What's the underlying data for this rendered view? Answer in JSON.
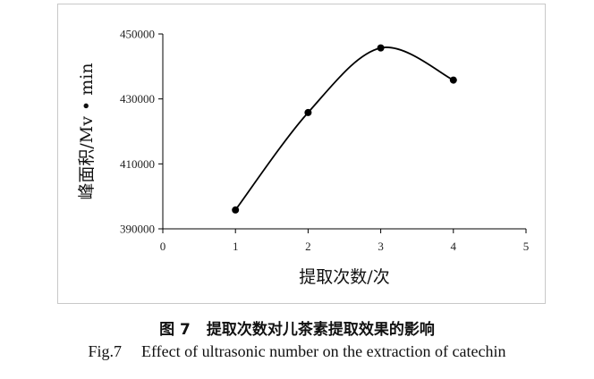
{
  "chart_data": {
    "type": "line",
    "title": "",
    "xlabel": "提取次数/次",
    "ylabel": "峰面积/Mv • min",
    "x": [
      1,
      2,
      3,
      4
    ],
    "y": [
      395800,
      425800,
      445700,
      435800
    ],
    "xlim": [
      0,
      5
    ],
    "ylim": [
      390000,
      450000
    ],
    "xticks": [
      0,
      1,
      2,
      3,
      4,
      5
    ],
    "yticks": [
      390000,
      410000,
      430000,
      450000
    ],
    "xtick_labels": [
      "0",
      "1",
      "2",
      "3",
      "4",
      "5"
    ],
    "ytick_labels": [
      "390000",
      "410000",
      "430000",
      "450000"
    ],
    "grid": false,
    "legend": "none",
    "smooth": true,
    "color": "#000000"
  },
  "caption": {
    "cn_label": "图 7",
    "cn_text": "提取次数对儿茶素提取效果的影响",
    "en_label": "Fig.7",
    "en_text": "Effect of ultrasonic number on the extraction of catechin"
  }
}
